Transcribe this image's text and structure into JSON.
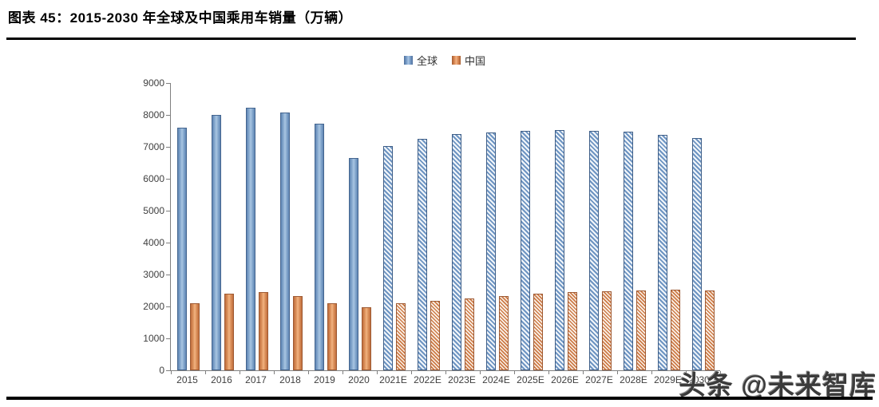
{
  "header": {
    "title": "图表 45：2015-2030 年全球及中国乘用车销量（万辆）"
  },
  "watermark": "头条 @未来智库",
  "legend": {
    "global_label": "全球",
    "china_label": "中国"
  },
  "chart_data": {
    "type": "bar",
    "title": "2015-2030 年全球及中国乘用车销量（万辆）",
    "xlabel": "",
    "ylabel": "",
    "ylim": [
      0,
      9000
    ],
    "ytick_step": 1000,
    "ytick_labels": [
      "0",
      "1000",
      "2000",
      "3000",
      "4000",
      "5000",
      "6000",
      "7000",
      "8000",
      "9000"
    ],
    "grid": false,
    "legend_position": "top-center",
    "categories": [
      "2015",
      "2016",
      "2017",
      "2018",
      "2019",
      "2020",
      "2021E",
      "2022E",
      "2023E",
      "2024E",
      "2025E",
      "2026E",
      "2027E",
      "2028E",
      "2029E",
      "2030E"
    ],
    "estimate_start_index": 6,
    "series": [
      {
        "name": "全球",
        "color": "#7ba0cb",
        "values": [
          7600,
          8000,
          8220,
          8080,
          7730,
          6650,
          7030,
          7250,
          7390,
          7460,
          7490,
          7530,
          7510,
          7480,
          7380,
          7270
        ]
      },
      {
        "name": "中国",
        "color": "#dd8a55",
        "values": [
          2100,
          2400,
          2450,
          2330,
          2110,
          1980,
          2090,
          2180,
          2250,
          2320,
          2390,
          2440,
          2480,
          2510,
          2530,
          2500
        ]
      }
    ]
  },
  "colors": {
    "global_bar": "#7ba0cb",
    "china_bar": "#dd8a55",
    "axis": "#7f7f7f",
    "rule": "#000000",
    "watermark_text": "#3b3b3b"
  }
}
